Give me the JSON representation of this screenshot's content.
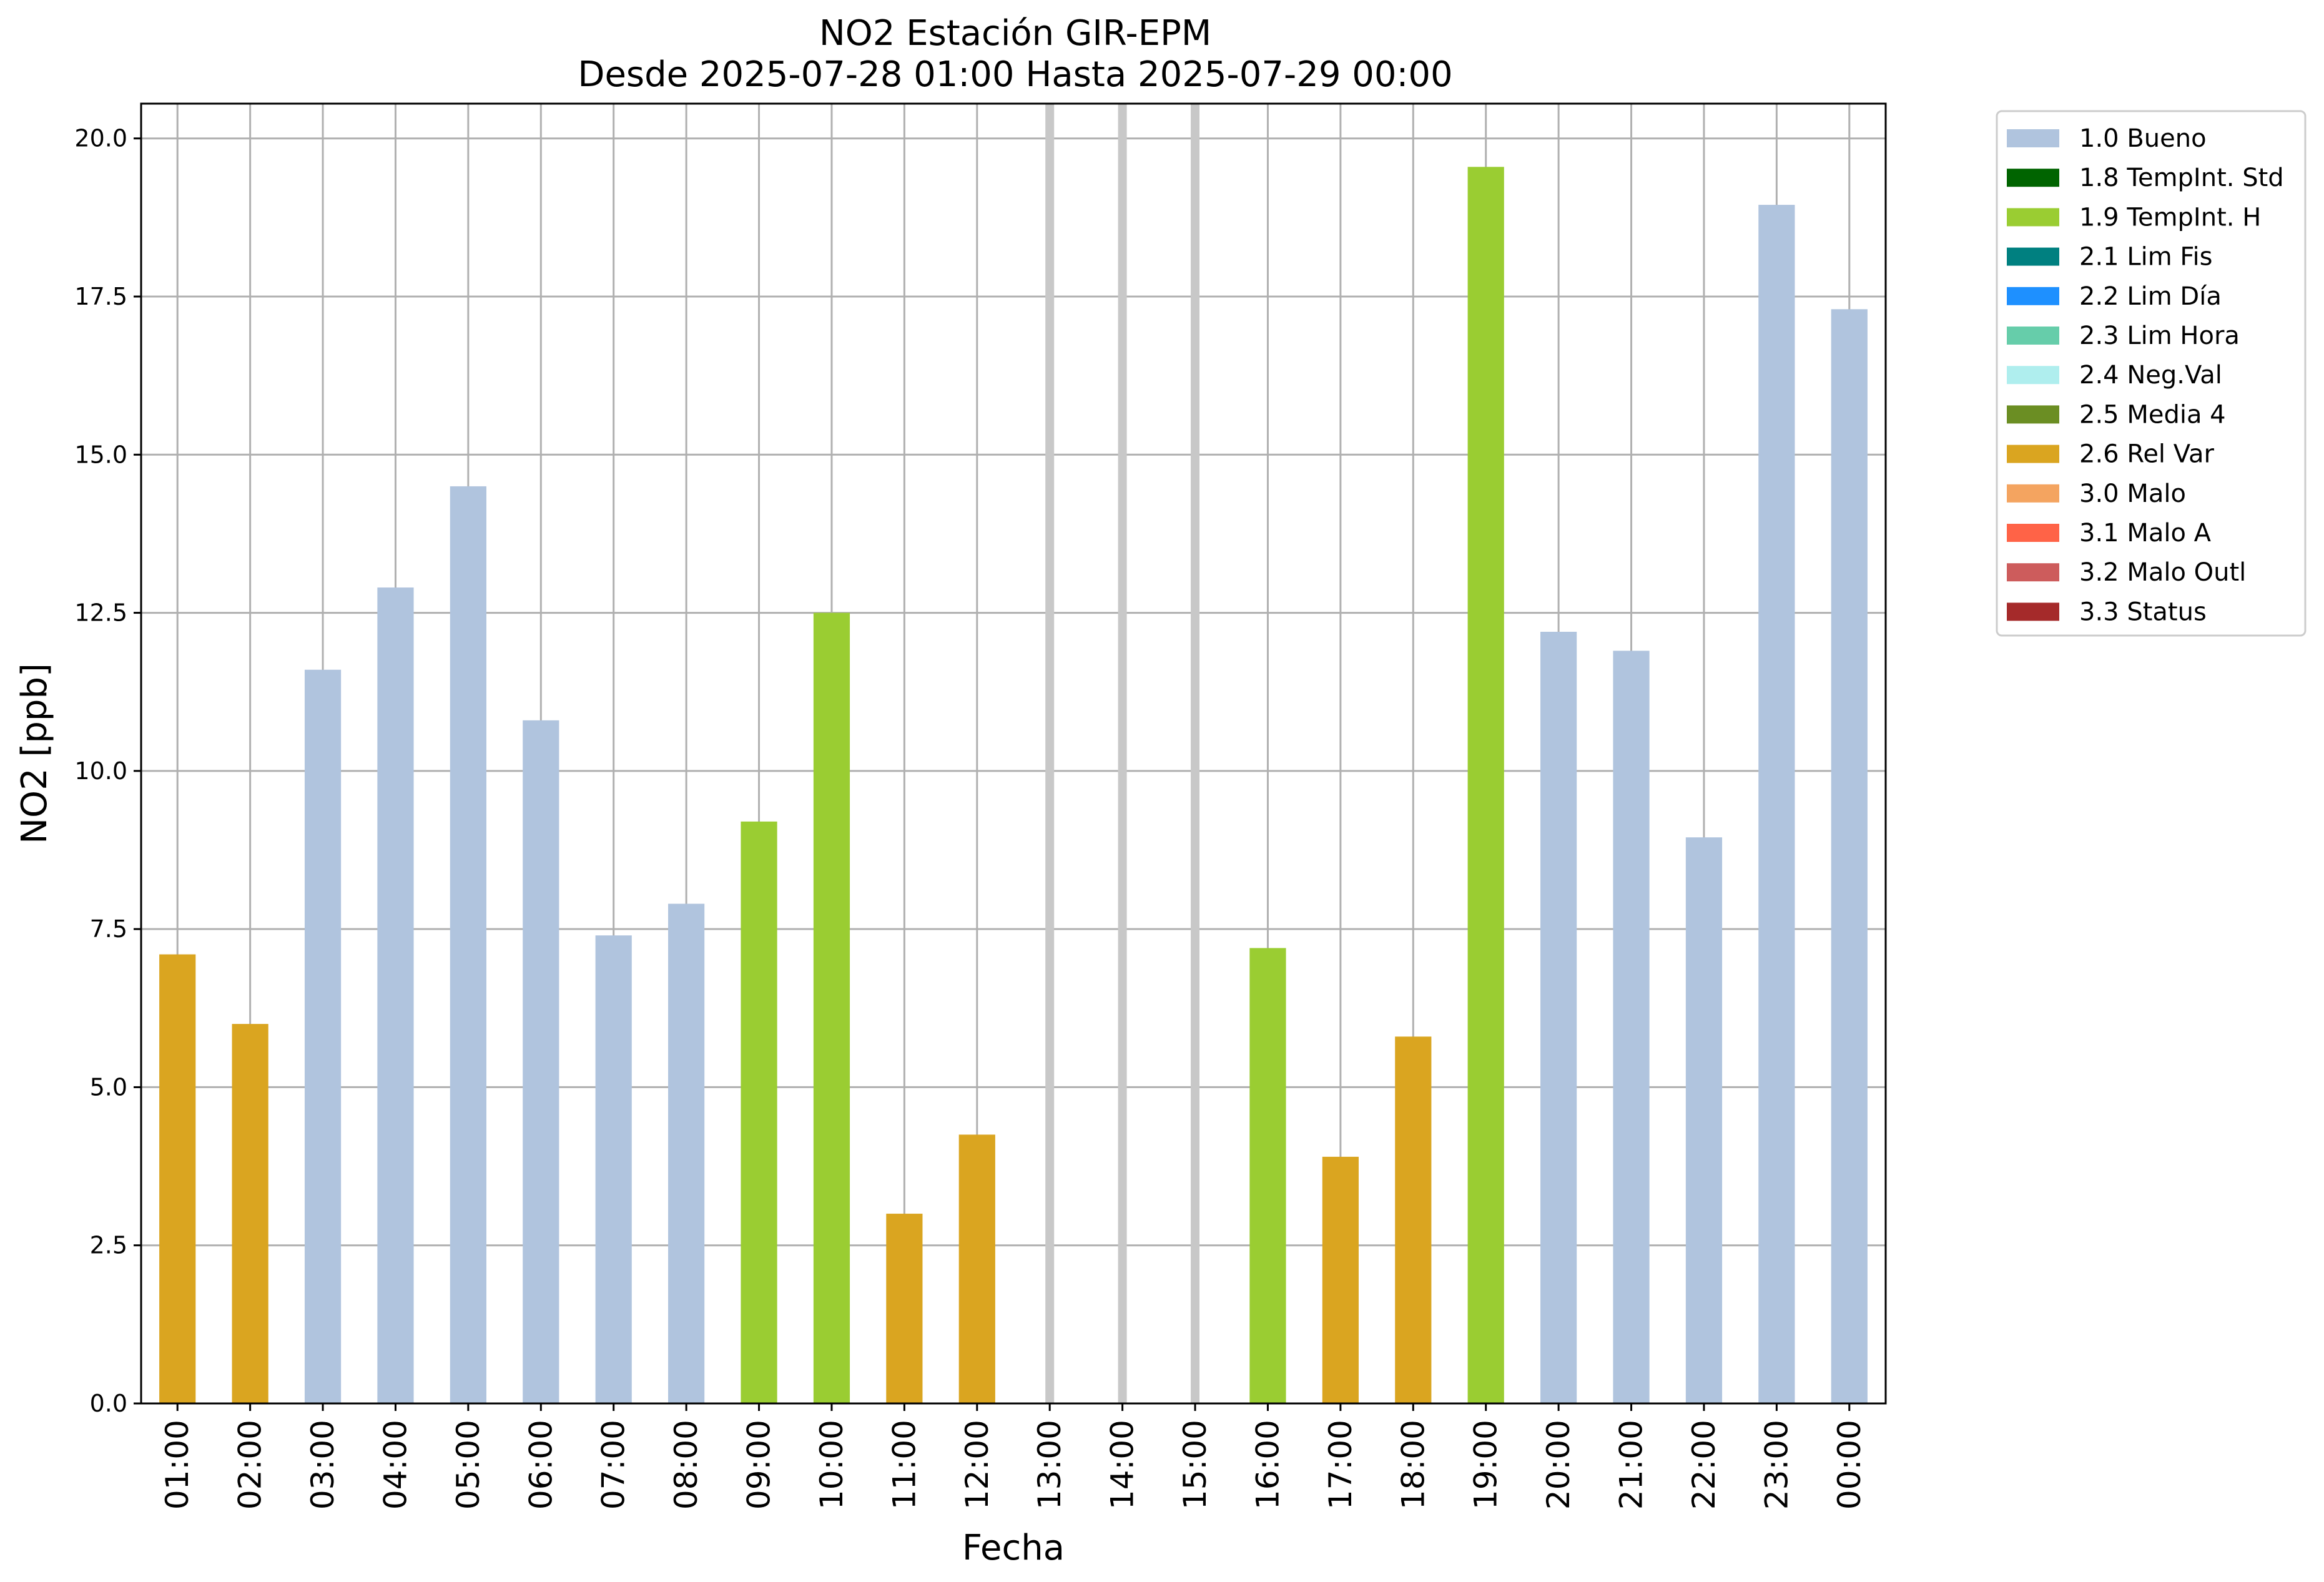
{
  "chart_data": {
    "type": "bar",
    "title": "NO2 Estación GIR-EPM",
    "subtitle": "Desde 2025-07-28 01:00 Hasta 2025-07-29 00:00",
    "xlabel": "Fecha",
    "ylabel": "NO2 [ppb]",
    "ylim": [
      0,
      20.55
    ],
    "yticks": [
      "0.0",
      "2.5",
      "5.0",
      "7.5",
      "10.0",
      "12.5",
      "15.0",
      "17.5",
      "20.0"
    ],
    "grid": true,
    "legend_position": "outside-top-right",
    "categories": [
      "01:00",
      "02:00",
      "03:00",
      "04:00",
      "05:00",
      "06:00",
      "07:00",
      "08:00",
      "09:00",
      "10:00",
      "11:00",
      "12:00",
      "13:00",
      "14:00",
      "15:00",
      "16:00",
      "17:00",
      "18:00",
      "19:00",
      "20:00",
      "21:00",
      "22:00",
      "23:00",
      "00:00"
    ],
    "values": [
      7.1,
      6.0,
      11.6,
      12.9,
      14.5,
      10.8,
      7.4,
      7.9,
      9.2,
      12.5,
      3.0,
      4.25,
      null,
      null,
      null,
      7.2,
      3.9,
      5.8,
      19.55,
      12.2,
      11.9,
      8.95,
      18.95,
      17.3
    ],
    "flags": [
      "2.6 Rel Var",
      "2.6 Rel Var",
      "1.0 Bueno",
      "1.0 Bueno",
      "1.0 Bueno",
      "1.0 Bueno",
      "1.0 Bueno",
      "1.0 Bueno",
      "1.9 TempInt. H",
      "1.9 TempInt. H",
      "2.6 Rel Var",
      "2.6 Rel Var",
      null,
      null,
      null,
      "1.9 TempInt. H",
      "2.6 Rel Var",
      "2.6 Rel Var",
      "1.9 TempInt. H",
      "1.0 Bueno",
      "1.0 Bueno",
      "1.0 Bueno",
      "1.0 Bueno",
      "1.0 Bueno"
    ],
    "missing_marker_color": "#c8c8c8",
    "legend": [
      {
        "label": "1.0 Bueno",
        "color": "#b0c4de"
      },
      {
        "label": "1.8 TempInt. Std",
        "color": "#006400"
      },
      {
        "label": "1.9 TempInt. H",
        "color": "#9acd32"
      },
      {
        "label": "2.1 Lim Fis",
        "color": "#008080"
      },
      {
        "label": "2.2 Lim Día",
        "color": "#1e90ff"
      },
      {
        "label": "2.3 Lim Hora",
        "color": "#66cdaa"
      },
      {
        "label": "2.4 Neg.Val",
        "color": "#afeeee"
      },
      {
        "label": "2.5 Media 4",
        "color": "#6b8e23"
      },
      {
        "label": "2.6 Rel Var",
        "color": "#daa520"
      },
      {
        "label": "3.0 Malo",
        "color": "#f4a460"
      },
      {
        "label": "3.1 Malo A",
        "color": "#ff6347"
      },
      {
        "label": "3.2 Malo Outl",
        "color": "#cd5c5c"
      },
      {
        "label": "3.3 Status",
        "color": "#a52a2a"
      }
    ]
  }
}
